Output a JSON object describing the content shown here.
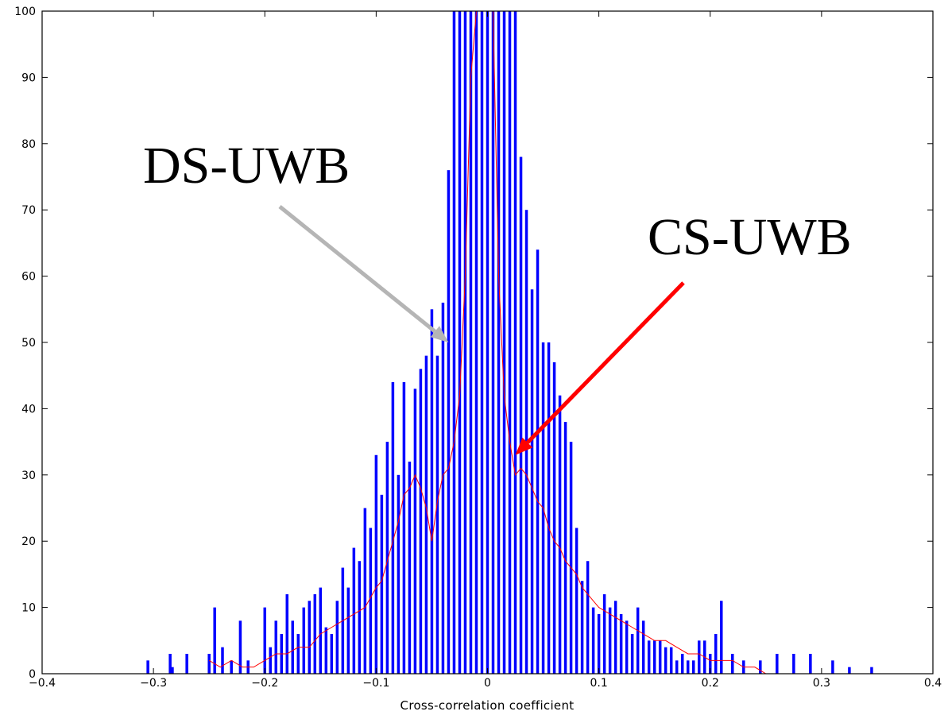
{
  "chart_data": {
    "type": "bar",
    "title": "",
    "xlabel": "Cross-correlation coefficient",
    "ylabel": "",
    "xlim": [
      -0.4,
      0.4
    ],
    "ylim": [
      0,
      100
    ],
    "xticks": [
      "-0.4",
      "-0.3",
      "-0.2",
      "-0.1",
      "0",
      "0.1",
      "0.2",
      "0.3",
      "0.4"
    ],
    "yticks": [
      "0",
      "10",
      "20",
      "30",
      "40",
      "50",
      "60",
      "70",
      "80",
      "90",
      "100"
    ],
    "grid": false,
    "bin_width": 0.0025,
    "series": [
      {
        "name": "DS-UWB",
        "render": "bar",
        "color": "#0000ff",
        "x": [
          -0.305,
          -0.285,
          -0.283,
          -0.27,
          -0.25,
          -0.245,
          -0.238,
          -0.23,
          -0.222,
          -0.215,
          -0.2,
          -0.195,
          -0.19,
          -0.185,
          -0.18,
          -0.175,
          -0.17,
          -0.165,
          -0.16,
          -0.155,
          -0.15,
          -0.145,
          -0.14,
          -0.135,
          -0.13,
          -0.125,
          -0.12,
          -0.115,
          -0.11,
          -0.105,
          -0.1,
          -0.095,
          -0.09,
          -0.085,
          -0.08,
          -0.075,
          -0.07,
          -0.065,
          -0.06,
          -0.055,
          -0.05,
          -0.045,
          -0.04,
          -0.035,
          -0.03,
          -0.025,
          -0.02,
          -0.015,
          -0.01,
          -0.005,
          0.0,
          0.005,
          0.01,
          0.015,
          0.02,
          0.025,
          0.03,
          0.035,
          0.04,
          0.045,
          0.05,
          0.055,
          0.06,
          0.065,
          0.07,
          0.075,
          0.08,
          0.085,
          0.09,
          0.095,
          0.1,
          0.105,
          0.11,
          0.115,
          0.12,
          0.125,
          0.13,
          0.135,
          0.14,
          0.145,
          0.15,
          0.155,
          0.16,
          0.165,
          0.17,
          0.175,
          0.18,
          0.185,
          0.19,
          0.195,
          0.2,
          0.205,
          0.21,
          0.22,
          0.23,
          0.245,
          0.26,
          0.275,
          0.29,
          0.31,
          0.325,
          0.345
        ],
        "values": [
          2,
          3,
          1,
          3,
          3,
          10,
          4,
          2,
          8,
          2,
          10,
          4,
          8,
          6,
          12,
          8,
          6,
          10,
          11,
          12,
          13,
          7,
          6,
          11,
          16,
          13,
          19,
          17,
          25,
          22,
          33,
          27,
          35,
          44,
          30,
          44,
          32,
          43,
          46,
          48,
          55,
          48,
          56,
          76,
          101,
          101,
          101,
          101,
          101,
          101,
          101,
          101,
          101,
          101,
          101,
          101,
          78,
          70,
          58,
          64,
          50,
          50,
          47,
          42,
          38,
          35,
          22,
          14,
          17,
          10,
          9,
          12,
          10,
          11,
          9,
          8,
          6,
          10,
          8,
          5,
          5,
          5,
          4,
          4,
          2,
          3,
          2,
          2,
          5,
          5,
          3,
          6,
          11,
          3,
          2,
          2,
          3,
          3,
          3,
          2,
          1,
          1
        ]
      },
      {
        "name": "CS-UWB",
        "render": "line",
        "color": "#ff0000",
        "x": [
          -0.25,
          -0.24,
          -0.23,
          -0.22,
          -0.21,
          -0.2,
          -0.19,
          -0.18,
          -0.17,
          -0.16,
          -0.15,
          -0.14,
          -0.13,
          -0.12,
          -0.11,
          -0.1,
          -0.095,
          -0.09,
          -0.085,
          -0.08,
          -0.075,
          -0.07,
          -0.065,
          -0.06,
          -0.055,
          -0.05,
          -0.045,
          -0.04,
          -0.035,
          -0.03,
          -0.025,
          -0.02,
          -0.015,
          -0.01,
          -0.005,
          0.0,
          0.005,
          0.01,
          0.015,
          0.02,
          0.025,
          0.03,
          0.035,
          0.04,
          0.045,
          0.05,
          0.055,
          0.06,
          0.065,
          0.07,
          0.075,
          0.08,
          0.085,
          0.09,
          0.095,
          0.1,
          0.11,
          0.12,
          0.13,
          0.14,
          0.15,
          0.16,
          0.17,
          0.18,
          0.19,
          0.2,
          0.21,
          0.22,
          0.23,
          0.24,
          0.25
        ],
        "values": [
          2,
          1,
          2,
          1,
          1,
          2,
          3,
          3,
          4,
          4,
          6,
          7,
          8,
          9,
          10,
          13,
          14,
          17,
          20,
          23,
          27,
          28,
          30,
          28,
          25,
          20,
          26,
          30,
          31,
          35,
          42,
          60,
          90,
          101,
          101,
          101,
          101,
          60,
          42,
          35,
          30,
          31,
          30,
          28,
          26,
          25,
          22,
          20,
          19,
          17,
          16,
          15,
          13,
          12,
          11,
          10,
          9,
          8,
          7,
          6,
          5,
          5,
          4,
          3,
          3,
          2,
          2,
          2,
          1,
          1,
          0
        ]
      }
    ],
    "annotations": [
      {
        "text": "DS-UWB",
        "color": "#000000",
        "arrow_color": "#b5b5b5",
        "points_to": [
          -0.035,
          50
        ]
      },
      {
        "text": "CS-UWB",
        "color": "#000000",
        "arrow_color": "#ff0000",
        "points_to": [
          0.025,
          33
        ]
      }
    ]
  }
}
